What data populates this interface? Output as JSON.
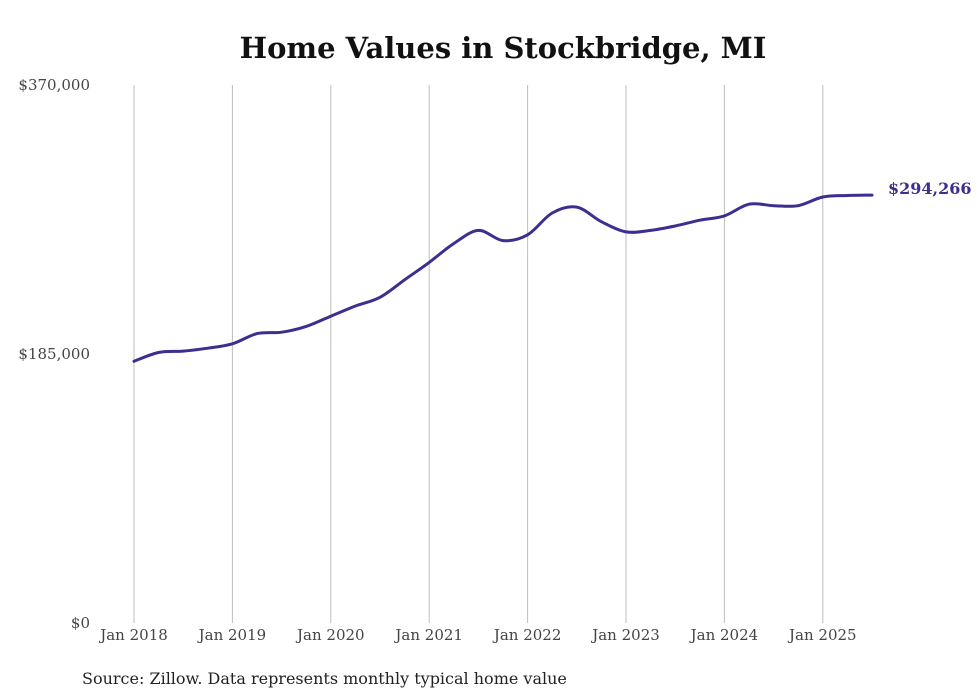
{
  "chart_data": {
    "type": "line",
    "title": "Home Values in Stockbridge, MI",
    "xlabel": "",
    "ylabel": "",
    "ylim": [
      0,
      370000
    ],
    "y_ticks": [
      "$0",
      "$185,000",
      "$370,000"
    ],
    "y_tick_values": [
      0,
      185000,
      370000
    ],
    "x_ticks": [
      "Jan 2018",
      "Jan 2019",
      "Jan 2020",
      "Jan 2021",
      "Jan 2022",
      "Jan 2023",
      "Jan 2024",
      "Jan 2025"
    ],
    "x_tick_values": [
      2018.0,
      2019.0,
      2020.0,
      2021.0,
      2022.0,
      2023.0,
      2024.0,
      2025.0
    ],
    "grid": "vertical",
    "line_color": "#3b2f8f",
    "end_label": "$294,266",
    "series": [
      {
        "x": [
          2018.0,
          2018.25,
          2018.5,
          2018.75,
          2019.0,
          2019.25,
          2019.5,
          2019.75,
          2020.0,
          2020.25,
          2020.5,
          2020.75,
          2021.0,
          2021.25,
          2021.5,
          2021.75,
          2022.0,
          2022.25,
          2022.5,
          2022.75,
          2023.0,
          2023.25,
          2023.5,
          2023.75,
          2024.0,
          2024.25,
          2024.5,
          2024.75,
          2025.0,
          2025.25,
          2025.5
        ],
        "values": [
          180000,
          186000,
          187000,
          189000,
          192000,
          199000,
          200000,
          204000,
          211000,
          218000,
          224000,
          236000,
          248000,
          261000,
          270000,
          263000,
          267000,
          282000,
          286000,
          276000,
          269000,
          270000,
          273000,
          277000,
          280000,
          288000,
          287000,
          287000,
          293000,
          294000,
          294266
        ]
      }
    ]
  },
  "source_note": "Source: Zillow. Data represents monthly typical home value"
}
